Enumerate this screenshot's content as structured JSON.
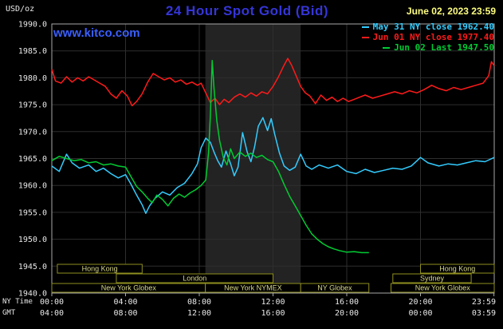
{
  "header": {
    "datetime": "June 02, 2023 23:59",
    "watermark": "www.kitco.com"
  },
  "colors": {
    "bg": "#000000",
    "frame": "#a8a8a8",
    "grid": "#2e2e2e",
    "band": "#232323",
    "axis_text": "#e8e8e8",
    "title": "#3535d8",
    "watermark": "#3a5fff",
    "datetime": "#ffff80",
    "session_border": "#8f8f1f",
    "session_text": "#d8d88a"
  },
  "chart_data": {
    "type": "line",
    "title": "24 Hour Spot Gold (Bid)",
    "y_axis": {
      "units": "USD/oz",
      "min": 1940,
      "max": 1990,
      "step": 5
    },
    "x_axis": {
      "label_top": "NY Time",
      "label_bottom": "GMT",
      "hours_range": [
        0,
        24
      ],
      "ticks": [
        {
          "h": 0,
          "ny": "00:00",
          "gmt": "04:00"
        },
        {
          "h": 4,
          "ny": "04:00",
          "gmt": "08:00"
        },
        {
          "h": 8,
          "ny": "08:00",
          "gmt": "12:00"
        },
        {
          "h": 12,
          "ny": "12:00",
          "gmt": "16:00"
        },
        {
          "h": 16,
          "ny": "16:00",
          "gmt": "20:00"
        },
        {
          "h": 20,
          "ny": "20:00",
          "gmt": "00:00"
        },
        {
          "h": 23.983,
          "ny": "23:59",
          "gmt": "03:59"
        }
      ]
    },
    "nymex_band": {
      "start": 8.33,
      "end": 13.5
    },
    "sessions": [
      {
        "row": 0,
        "label": "Hong Kong",
        "start": 0.3,
        "end": 4.9
      },
      {
        "row": 0,
        "label": "Hong Kong",
        "start": 20.0,
        "end": 24.0
      },
      {
        "row": 1,
        "label": "London",
        "start": 3.5,
        "end": 12.0
      },
      {
        "row": 1,
        "label": "Sydney",
        "start": 18.5,
        "end": 22.75
      },
      {
        "row": 2,
        "label": "New York Globex",
        "start": 0.0,
        "end": 8.33
      },
      {
        "row": 2,
        "label": "New York NYMEX",
        "start": 8.33,
        "end": 13.5
      },
      {
        "row": 2,
        "label": "NY Globex",
        "start": 13.5,
        "end": 17.2
      },
      {
        "row": 2,
        "label": "New York Globex",
        "start": 18.4,
        "end": 24.0
      }
    ],
    "series": [
      {
        "id": "may31",
        "legend": "May 31 NY close 1962.40",
        "value": 1962.4,
        "color": "#33ccff",
        "points": [
          [
            0,
            1963.6
          ],
          [
            0.4,
            1962.6
          ],
          [
            0.8,
            1965.8
          ],
          [
            1.1,
            1964.2
          ],
          [
            1.5,
            1963.2
          ],
          [
            2,
            1963.8
          ],
          [
            2.4,
            1962.6
          ],
          [
            2.8,
            1963.2
          ],
          [
            3.2,
            1962.2
          ],
          [
            3.6,
            1961.4
          ],
          [
            4,
            1962.0
          ],
          [
            4.3,
            1960.2
          ],
          [
            4.6,
            1958.2
          ],
          [
            4.9,
            1956.4
          ],
          [
            5.1,
            1954.8
          ],
          [
            5.3,
            1956.2
          ],
          [
            5.6,
            1957.6
          ],
          [
            6,
            1958.8
          ],
          [
            6.4,
            1958.2
          ],
          [
            6.8,
            1959.6
          ],
          [
            7.2,
            1960.4
          ],
          [
            7.6,
            1962.2
          ],
          [
            7.9,
            1964.0
          ],
          [
            8.1,
            1967.0
          ],
          [
            8.35,
            1968.8
          ],
          [
            8.6,
            1968.0
          ],
          [
            8.8,
            1966.2
          ],
          [
            9,
            1964.6
          ],
          [
            9.2,
            1963.4
          ],
          [
            9.45,
            1966.4
          ],
          [
            9.7,
            1964.0
          ],
          [
            9.9,
            1961.8
          ],
          [
            10.1,
            1963.4
          ],
          [
            10.35,
            1969.8
          ],
          [
            10.6,
            1966.2
          ],
          [
            10.8,
            1964.4
          ],
          [
            11,
            1967.2
          ],
          [
            11.2,
            1971.0
          ],
          [
            11.45,
            1972.6
          ],
          [
            11.7,
            1970.2
          ],
          [
            11.9,
            1972.4
          ],
          [
            12.1,
            1969.4
          ],
          [
            12.35,
            1966.0
          ],
          [
            12.6,
            1963.6
          ],
          [
            12.9,
            1962.8
          ],
          [
            13.2,
            1963.4
          ],
          [
            13.5,
            1965.8
          ],
          [
            13.8,
            1963.6
          ],
          [
            14.1,
            1963.0
          ],
          [
            14.5,
            1963.8
          ],
          [
            15,
            1963.2
          ],
          [
            15.5,
            1963.8
          ],
          [
            16,
            1962.6
          ],
          [
            16.5,
            1962.2
          ],
          [
            17,
            1963.0
          ],
          [
            17.5,
            1962.4
          ],
          [
            18,
            1962.8
          ],
          [
            18.5,
            1963.2
          ],
          [
            19,
            1963.0
          ],
          [
            19.5,
            1963.6
          ],
          [
            20,
            1965.2
          ],
          [
            20.4,
            1964.2
          ],
          [
            21,
            1963.6
          ],
          [
            21.5,
            1964.0
          ],
          [
            22,
            1963.8
          ],
          [
            22.5,
            1964.2
          ],
          [
            23,
            1964.6
          ],
          [
            23.5,
            1964.4
          ],
          [
            24,
            1965.2
          ]
        ]
      },
      {
        "id": "jun01",
        "legend": "Jun 01 NY close 1977.40",
        "value": 1977.4,
        "color": "#ff1a1a",
        "points": [
          [
            0,
            1981.6
          ],
          [
            0.2,
            1979.4
          ],
          [
            0.5,
            1979.0
          ],
          [
            0.8,
            1980.2
          ],
          [
            1.1,
            1979.2
          ],
          [
            1.4,
            1980.0
          ],
          [
            1.7,
            1979.4
          ],
          [
            2,
            1980.2
          ],
          [
            2.3,
            1979.6
          ],
          [
            2.6,
            1979.0
          ],
          [
            2.9,
            1978.4
          ],
          [
            3.2,
            1977.0
          ],
          [
            3.5,
            1976.2
          ],
          [
            3.8,
            1977.6
          ],
          [
            4.1,
            1976.6
          ],
          [
            4.35,
            1974.8
          ],
          [
            4.6,
            1975.6
          ],
          [
            4.9,
            1977.0
          ],
          [
            5.2,
            1979.2
          ],
          [
            5.5,
            1980.8
          ],
          [
            5.8,
            1980.2
          ],
          [
            6.1,
            1979.6
          ],
          [
            6.4,
            1980.0
          ],
          [
            6.7,
            1979.2
          ],
          [
            7,
            1979.6
          ],
          [
            7.3,
            1978.8
          ],
          [
            7.6,
            1979.2
          ],
          [
            7.9,
            1978.6
          ],
          [
            8.1,
            1979.0
          ],
          [
            8.35,
            1977.2
          ],
          [
            8.6,
            1975.4
          ],
          [
            8.85,
            1976.2
          ],
          [
            9.1,
            1975.0
          ],
          [
            9.35,
            1976.0
          ],
          [
            9.6,
            1975.4
          ],
          [
            9.9,
            1976.4
          ],
          [
            10.2,
            1977.0
          ],
          [
            10.5,
            1976.4
          ],
          [
            10.8,
            1977.2
          ],
          [
            11.1,
            1976.6
          ],
          [
            11.4,
            1977.4
          ],
          [
            11.7,
            1977.0
          ],
          [
            12,
            1978.4
          ],
          [
            12.3,
            1980.2
          ],
          [
            12.55,
            1982.0
          ],
          [
            12.8,
            1983.6
          ],
          [
            13,
            1982.4
          ],
          [
            13.25,
            1980.4
          ],
          [
            13.5,
            1978.4
          ],
          [
            13.75,
            1977.2
          ],
          [
            14,
            1976.6
          ],
          [
            14.3,
            1975.2
          ],
          [
            14.6,
            1976.8
          ],
          [
            14.9,
            1975.8
          ],
          [
            15.2,
            1976.4
          ],
          [
            15.5,
            1975.6
          ],
          [
            15.8,
            1976.2
          ],
          [
            16.1,
            1975.6
          ],
          [
            16.4,
            1976.0
          ],
          [
            16.7,
            1976.4
          ],
          [
            17,
            1976.8
          ],
          [
            17.4,
            1976.2
          ],
          [
            17.8,
            1976.6
          ],
          [
            18.2,
            1977.0
          ],
          [
            18.6,
            1977.4
          ],
          [
            19,
            1977.0
          ],
          [
            19.4,
            1977.6
          ],
          [
            19.8,
            1977.2
          ],
          [
            20.2,
            1977.8
          ],
          [
            20.6,
            1978.6
          ],
          [
            21,
            1978.0
          ],
          [
            21.4,
            1977.6
          ],
          [
            21.8,
            1978.2
          ],
          [
            22.2,
            1977.8
          ],
          [
            22.6,
            1978.2
          ],
          [
            23,
            1978.6
          ],
          [
            23.4,
            1979.0
          ],
          [
            23.7,
            1980.4
          ],
          [
            23.85,
            1983.0
          ],
          [
            24,
            1982.2
          ]
        ]
      },
      {
        "id": "jun02",
        "legend": "Jun 02 Last 1947.50",
        "value": 1947.5,
        "color": "#00cc33",
        "points": [
          [
            0,
            1964.6
          ],
          [
            0.4,
            1965.4
          ],
          [
            0.8,
            1965.0
          ],
          [
            1.2,
            1964.6
          ],
          [
            1.6,
            1964.8
          ],
          [
            2,
            1964.2
          ],
          [
            2.4,
            1964.4
          ],
          [
            2.8,
            1963.8
          ],
          [
            3.2,
            1964.0
          ],
          [
            3.6,
            1963.6
          ],
          [
            4,
            1963.4
          ],
          [
            4.3,
            1961.6
          ],
          [
            4.6,
            1959.8
          ],
          [
            4.9,
            1958.8
          ],
          [
            5.2,
            1957.6
          ],
          [
            5.45,
            1956.8
          ],
          [
            5.7,
            1958.2
          ],
          [
            6,
            1957.4
          ],
          [
            6.3,
            1956.2
          ],
          [
            6.6,
            1957.6
          ],
          [
            6.9,
            1958.4
          ],
          [
            7.2,
            1957.8
          ],
          [
            7.5,
            1958.6
          ],
          [
            7.8,
            1959.2
          ],
          [
            8.1,
            1960.0
          ],
          [
            8.35,
            1961.0
          ],
          [
            8.5,
            1966.0
          ],
          [
            8.6,
            1973.0
          ],
          [
            8.7,
            1983.2
          ],
          [
            8.8,
            1978.0
          ],
          [
            8.95,
            1972.0
          ],
          [
            9.1,
            1968.4
          ],
          [
            9.3,
            1965.2
          ],
          [
            9.5,
            1963.8
          ],
          [
            9.7,
            1966.8
          ],
          [
            9.9,
            1965.0
          ],
          [
            10.2,
            1966.2
          ],
          [
            10.5,
            1965.4
          ],
          [
            10.8,
            1966.0
          ],
          [
            11.1,
            1965.2
          ],
          [
            11.4,
            1965.6
          ],
          [
            11.7,
            1964.8
          ],
          [
            12,
            1964.4
          ],
          [
            12.3,
            1962.6
          ],
          [
            12.6,
            1960.2
          ],
          [
            12.9,
            1958.0
          ],
          [
            13.2,
            1956.2
          ],
          [
            13.5,
            1954.4
          ],
          [
            13.8,
            1952.6
          ],
          [
            14.1,
            1951.0
          ],
          [
            14.4,
            1950.0
          ],
          [
            14.7,
            1949.2
          ],
          [
            15,
            1948.6
          ],
          [
            15.3,
            1948.2
          ],
          [
            15.6,
            1947.9
          ],
          [
            16,
            1947.6
          ],
          [
            16.4,
            1947.7
          ],
          [
            16.8,
            1947.5
          ],
          [
            17.2,
            1947.5
          ]
        ]
      }
    ]
  }
}
